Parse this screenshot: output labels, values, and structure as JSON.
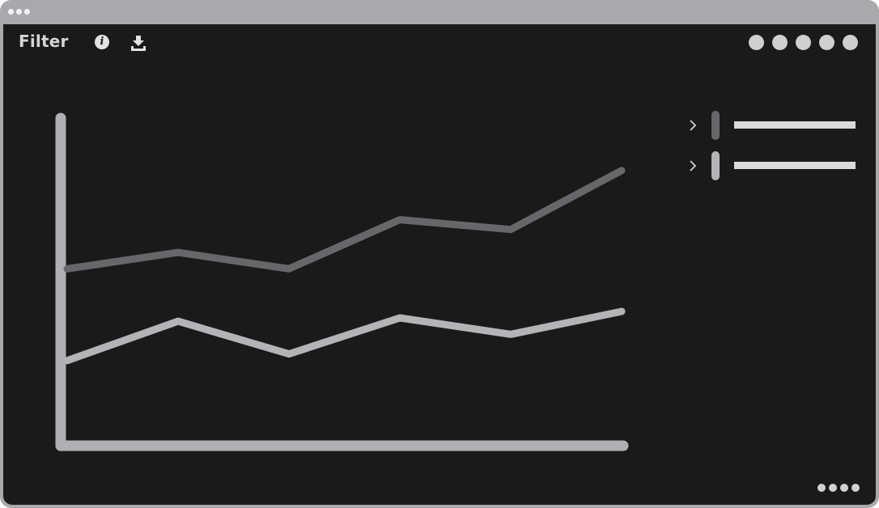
{
  "toolbar": {
    "title": "Filter",
    "info_icon": "info-icon",
    "download_icon": "download-icon",
    "view_dots": 5
  },
  "footer": {
    "more_icon": "more-dots-icon"
  },
  "colors": {
    "window_frame": "#a9a9ad",
    "background": "#1a1a1a",
    "axis": "#b0b0b4",
    "series_1": "#67676b",
    "series_2": "#b4b4b8"
  },
  "chart_data": {
    "type": "line",
    "title": "",
    "xlabel": "",
    "ylabel": "",
    "x": [
      0,
      1,
      2,
      3,
      4,
      5
    ],
    "ylim": [
      0,
      100
    ],
    "grid": false,
    "legend_position": "right",
    "series": [
      {
        "color": "#67676b",
        "values": [
          54,
          59,
          54,
          69,
          66,
          84
        ]
      },
      {
        "color": "#b4b4b8",
        "values": [
          26,
          38,
          28,
          39,
          34,
          41
        ]
      }
    ]
  }
}
